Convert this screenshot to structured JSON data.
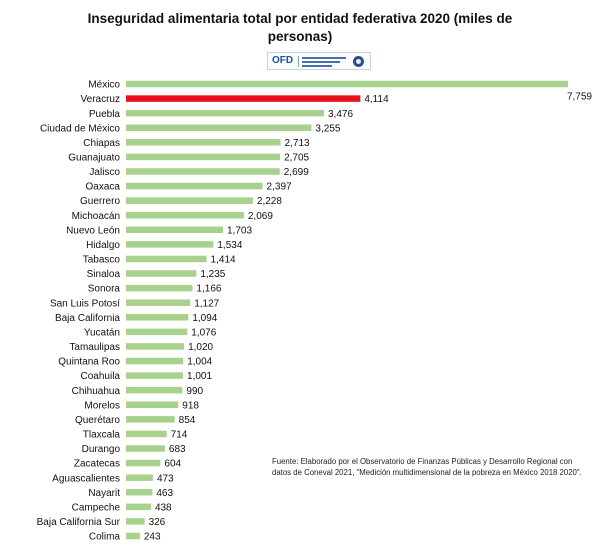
{
  "chart_data": {
    "type": "bar",
    "orientation": "horizontal",
    "title": "Inseguridad alimentaria total por entidad federativa 2020 (miles de personas)",
    "categories": [
      "México",
      "Veracruz",
      "Puebla",
      "Ciudad de México",
      "Chiapas",
      "Guanajuato",
      "Jalisco",
      "Oaxaca",
      "Guerrero",
      "Michoacán",
      "Nuevo León",
      "Hidalgo",
      "Tabasco",
      "Sinaloa",
      "Sonora",
      "San Luis Potosí",
      "Baja California",
      "Yucatán",
      "Tamaulipas",
      "Quintana Roo",
      "Coahuila",
      "Chihuahua",
      "Morelos",
      "Querétaro",
      "Tlaxcala",
      "Durango",
      "Zacatecas",
      "Aguascalientes",
      "Nayarit",
      "Campeche",
      "Baja California Sur",
      "Colima"
    ],
    "values": [
      7759,
      4114,
      3476,
      3255,
      2713,
      2705,
      2699,
      2397,
      2228,
      2069,
      1703,
      1534,
      1414,
      1235,
      1166,
      1127,
      1094,
      1076,
      1020,
      1004,
      1001,
      990,
      918,
      854,
      714,
      683,
      604,
      473,
      463,
      438,
      326,
      243
    ],
    "value_labels": [
      "7,759",
      "4,114",
      "3,476",
      "3,255",
      "2,713",
      "2,705",
      "2,699",
      "2,397",
      "2,228",
      "2,069",
      "1,703",
      "1,534",
      "1,414",
      "1,235",
      "1,166",
      "1,127",
      "1,094",
      "1,076",
      "1,020",
      "1,004",
      "1,001",
      "990",
      "918",
      "854",
      "714",
      "683",
      "604",
      "473",
      "463",
      "438",
      "326",
      "243"
    ],
    "highlight_category": "Veracruz",
    "colors": {
      "bar": "#a9d18e",
      "highlight": "#e8111b"
    },
    "xlim": [
      0,
      7759
    ],
    "grid": false,
    "legend": "none"
  },
  "logo": {
    "text": "OFD",
    "icon": "seal-icon"
  },
  "note": "Fuente: Elaborado por el Observatorio de Finanzas Públicas y Desarrollo Regional con datos de Coneval 2021, \"Medición multidimensional de la pobreza en México 2018 2020\"."
}
